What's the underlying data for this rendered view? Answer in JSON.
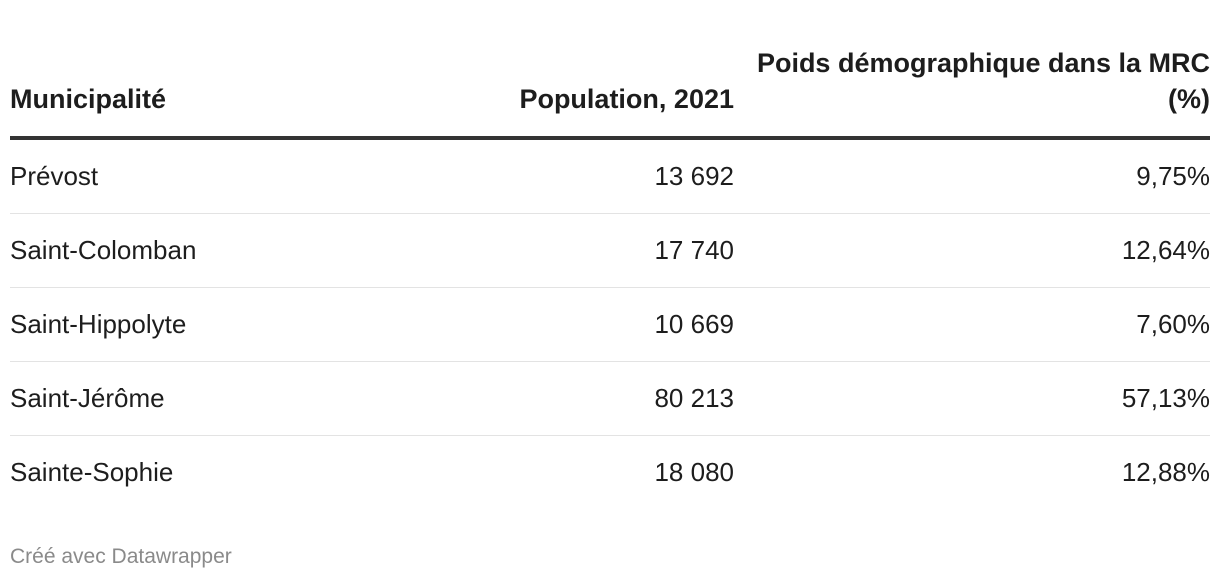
{
  "chart_data": {
    "type": "table",
    "columns": [
      "Municipalité",
      "Population, 2021",
      "Poids démographique dans la MRC (%)"
    ],
    "rows": [
      [
        "Prévost",
        "13 692",
        "9,75%"
      ],
      [
        "Saint-Colomban",
        "17 740",
        "12,64%"
      ],
      [
        "Saint-Hippolyte",
        "10 669",
        "7,60%"
      ],
      [
        "Saint-Jérôme",
        "80 213",
        "57,13%"
      ],
      [
        "Sainte-Sophie",
        "18 080",
        "12,88%"
      ]
    ]
  },
  "footer": {
    "credit": "Créé avec Datawrapper"
  },
  "colors": {
    "text": "#1d1d1d",
    "header_rule": "#333333",
    "row_rule": "#e3e3e3",
    "credit": "#8a8a8a"
  }
}
